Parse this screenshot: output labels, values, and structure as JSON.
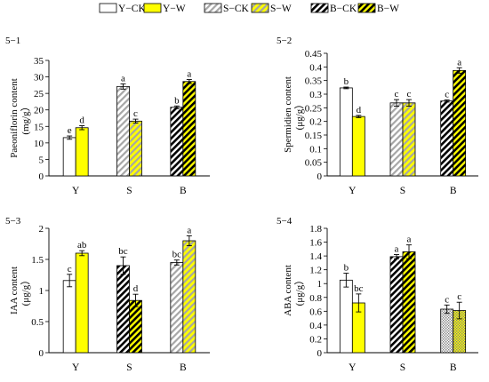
{
  "legend": {
    "items": [
      {
        "label": "Y−CK",
        "pattern": "white"
      },
      {
        "label": "Y−W",
        "pattern": "yellow"
      },
      {
        "label": "S−CK",
        "pattern": "gray-hatch"
      },
      {
        "label": "S−W",
        "pattern": "yellow-hatch"
      },
      {
        "label": "B−CK",
        "pattern": "black-hatch"
      },
      {
        "label": "B−W",
        "pattern": "yellow-black-hatch"
      }
    ]
  },
  "colors": {
    "yellow": "#ffff00",
    "gray": "#a6a6a6",
    "black": "#000000",
    "white": "#ffffff"
  },
  "chart_data": [
    {
      "type": "bar",
      "panel": "5−1",
      "ylabel": "Paeoniflorin content",
      "yunit": "(mg/g）",
      "ylim": [
        0,
        35
      ],
      "yticks": [
        0,
        5,
        10,
        15,
        20,
        25,
        30,
        35
      ],
      "categories": [
        "Y",
        "S",
        "B"
      ],
      "bars": [
        {
          "group": "Y",
          "pattern": "white",
          "value": 11.6,
          "err": 0.5,
          "label": "e"
        },
        {
          "group": "Y",
          "pattern": "yellow",
          "value": 14.6,
          "err": 0.6,
          "label": "d"
        },
        {
          "group": "S",
          "pattern": "gray-hatch",
          "value": 27.1,
          "err": 0.8,
          "label": "a"
        },
        {
          "group": "S",
          "pattern": "yellow-hatch",
          "value": 16.6,
          "err": 0.6,
          "label": "c"
        },
        {
          "group": "B",
          "pattern": "black-hatch",
          "value": 20.8,
          "err": 0.4,
          "label": "b"
        },
        {
          "group": "B",
          "pattern": "yellow-black-hatch",
          "value": 28.6,
          "err": 0.6,
          "label": "a"
        }
      ]
    },
    {
      "type": "bar",
      "panel": "5−2",
      "ylabel": "Spermidien content",
      "yunit": "(μg/g）",
      "ylim": [
        0,
        0.45
      ],
      "yticks": [
        0,
        0.05,
        0.1,
        0.15,
        0.2,
        0.25,
        0.3,
        0.35,
        0.4,
        0.45
      ],
      "categories": [
        "Y",
        "S",
        "B"
      ],
      "bars": [
        {
          "group": "Y",
          "pattern": "white",
          "value": 0.323,
          "err": 0.003,
          "label": "b"
        },
        {
          "group": "Y",
          "pattern": "yellow",
          "value": 0.218,
          "err": 0.004,
          "label": "d"
        },
        {
          "group": "S",
          "pattern": "gray-hatch",
          "value": 0.268,
          "err": 0.012,
          "label": "c"
        },
        {
          "group": "S",
          "pattern": "yellow-hatch",
          "value": 0.268,
          "err": 0.012,
          "label": "c"
        },
        {
          "group": "B",
          "pattern": "black-hatch",
          "value": 0.275,
          "err": 0.004,
          "label": "c"
        },
        {
          "group": "B",
          "pattern": "yellow-black-hatch",
          "value": 0.387,
          "err": 0.01,
          "label": "a"
        }
      ]
    },
    {
      "type": "bar",
      "panel": "5−3",
      "ylabel": "IAA content",
      "yunit": "(μg/g）",
      "ylim": [
        0,
        2
      ],
      "yticks": [
        0,
        0.5,
        1,
        1.5,
        2
      ],
      "categories": [
        "Y",
        "S",
        "B"
      ],
      "bars": [
        {
          "group": "Y",
          "pattern": "white",
          "value": 1.16,
          "err": 0.1,
          "label": "c"
        },
        {
          "group": "Y",
          "pattern": "yellow",
          "value": 1.6,
          "err": 0.04,
          "label": "ab"
        },
        {
          "group": "S",
          "pattern": "black-hatch",
          "value": 1.4,
          "err": 0.14,
          "label": "bc"
        },
        {
          "group": "S",
          "pattern": "yellow-black-hatch",
          "value": 0.84,
          "err": 0.1,
          "label": "d"
        },
        {
          "group": "B",
          "pattern": "gray-hatch",
          "value": 1.45,
          "err": 0.04,
          "label": "bc"
        },
        {
          "group": "B",
          "pattern": "yellow-hatch",
          "value": 1.8,
          "err": 0.08,
          "label": "a"
        }
      ]
    },
    {
      "type": "bar",
      "panel": "5−4",
      "ylabel": "ABA content",
      "yunit": "(μg/g）",
      "ylim": [
        0,
        1.8
      ],
      "yticks": [
        0,
        0.2,
        0.4,
        0.6,
        0.8,
        1,
        1.2,
        1.4,
        1.6,
        1.8
      ],
      "categories": [
        "Y",
        "S",
        "B"
      ],
      "bars": [
        {
          "group": "Y",
          "pattern": "white",
          "value": 1.05,
          "err": 0.1,
          "label": "b"
        },
        {
          "group": "Y",
          "pattern": "yellow",
          "value": 0.72,
          "err": 0.13,
          "label": "bc"
        },
        {
          "group": "S",
          "pattern": "black-hatch",
          "value": 1.39,
          "err": 0.03,
          "label": "a"
        },
        {
          "group": "S",
          "pattern": "yellow-black-hatch",
          "value": 1.46,
          "err": 0.1,
          "label": "a"
        },
        {
          "group": "B",
          "pattern": "gray-dots",
          "value": 0.63,
          "err": 0.06,
          "label": "c"
        },
        {
          "group": "B",
          "pattern": "yellow-dots",
          "value": 0.61,
          "err": 0.12,
          "label": "c"
        }
      ]
    }
  ]
}
